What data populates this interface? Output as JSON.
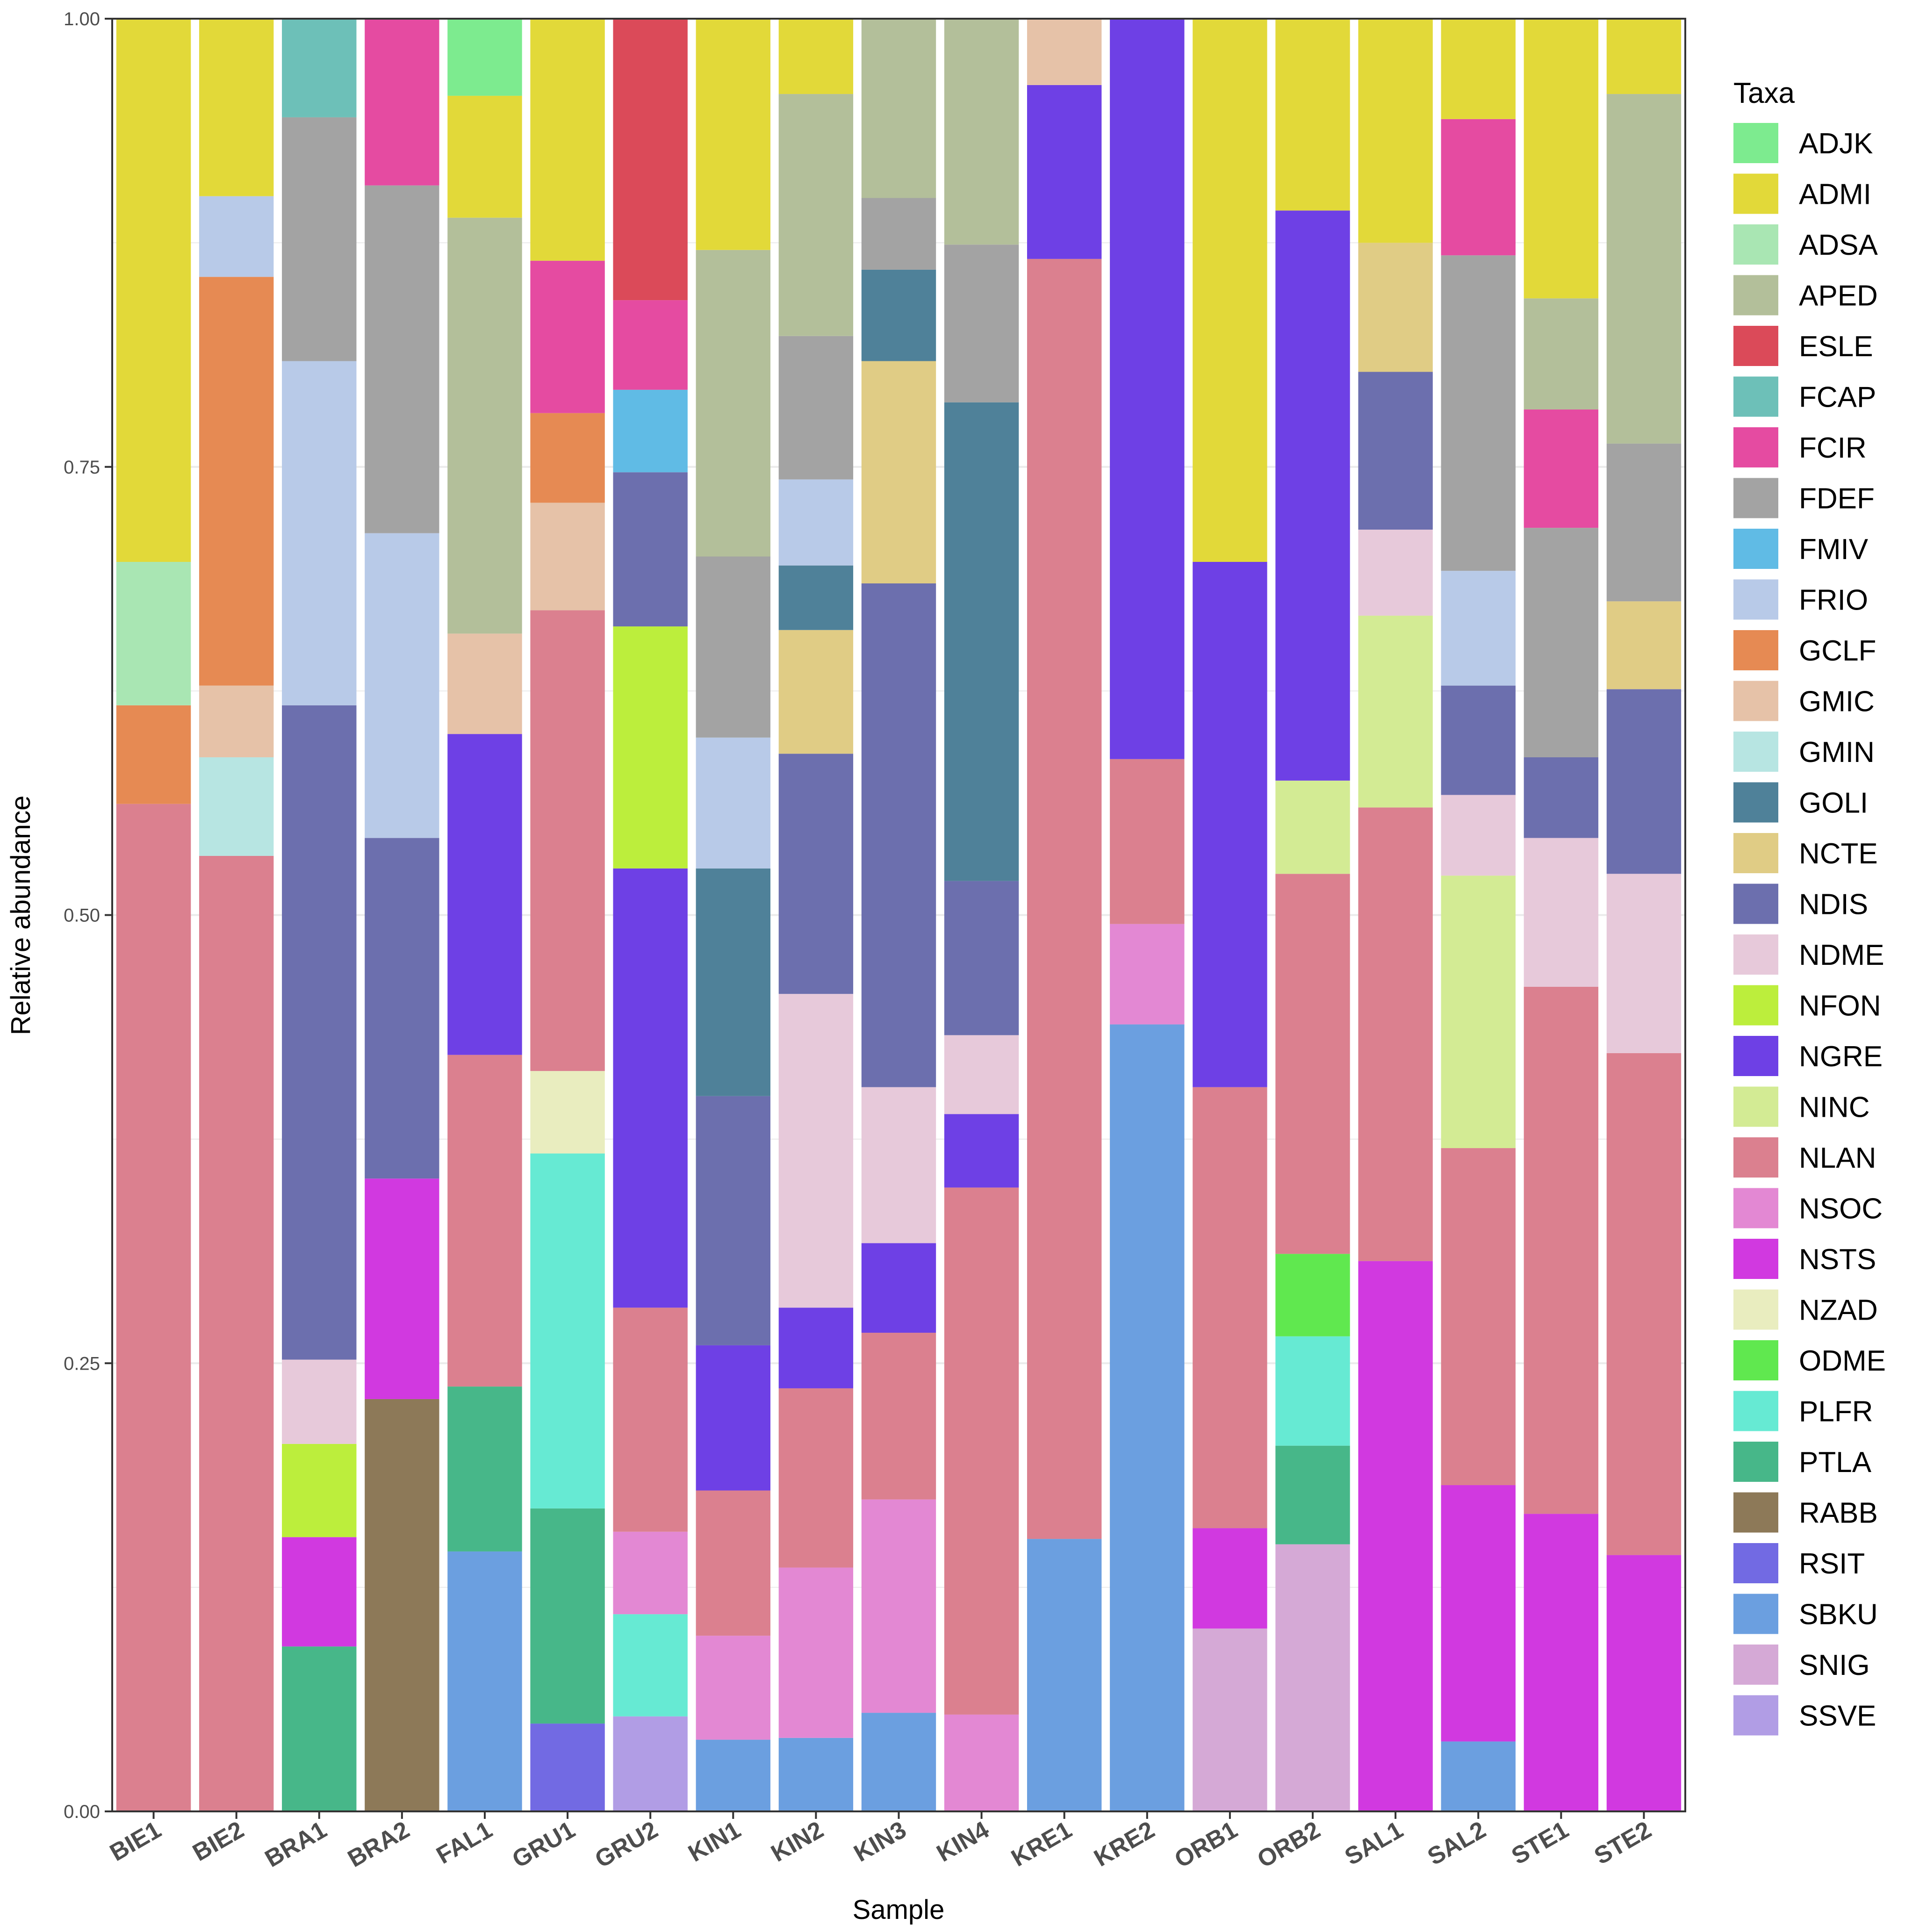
{
  "chart_data": {
    "type": "bar",
    "stacked": true,
    "xlabel": "Sample",
    "ylabel": "Relative abundance",
    "ylim": [
      0,
      1
    ],
    "y_ticks": [
      "0.00",
      "0.25",
      "0.50",
      "0.75",
      "1.00"
    ],
    "y_tick_values": [
      0,
      0.25,
      0.5,
      0.75,
      1.0
    ],
    "legend_title": "Taxa",
    "legend_position": "right",
    "grid": true,
    "taxa": [
      {
        "name": "ADJK",
        "color": "#7DEB8F"
      },
      {
        "name": "ADMI",
        "color": "#E2D939"
      },
      {
        "name": "ADSA",
        "color": "#A9E6B3"
      },
      {
        "name": "APED",
        "color": "#B3BF9A"
      },
      {
        "name": "ESLE",
        "color": "#DB4A59"
      },
      {
        "name": "FCAP",
        "color": "#6DC0B8"
      },
      {
        "name": "FCIR",
        "color": "#E54BA1"
      },
      {
        "name": "FDEF",
        "color": "#A3A3A3"
      },
      {
        "name": "FMIV",
        "color": "#60BBE5"
      },
      {
        "name": "FRIO",
        "color": "#B8CAE8"
      },
      {
        "name": "GCLF",
        "color": "#E68A53"
      },
      {
        "name": "GMIC",
        "color": "#E6C2A8"
      },
      {
        "name": "GMIN",
        "color": "#B7E5E2"
      },
      {
        "name": "GOLI",
        "color": "#4F8199"
      },
      {
        "name": "NCTE",
        "color": "#E0CC85"
      },
      {
        "name": "NDIS",
        "color": "#6C6FAE"
      },
      {
        "name": "NDME",
        "color": "#E7C9DA"
      },
      {
        "name": "NFON",
        "color": "#BCEE3C"
      },
      {
        "name": "NGRE",
        "color": "#6E40E5"
      },
      {
        "name": "NINC",
        "color": "#D3EB94"
      },
      {
        "name": "NLAN",
        "color": "#DB808F"
      },
      {
        "name": "NSOC",
        "color": "#E388D3"
      },
      {
        "name": "NSTS",
        "color": "#D139E0"
      },
      {
        "name": "NZAD",
        "color": "#E9EDBF"
      },
      {
        "name": "ODME",
        "color": "#60E84F"
      },
      {
        "name": "PLFR",
        "color": "#66EAD3"
      },
      {
        "name": "PTLA",
        "color": "#47B789"
      },
      {
        "name": "RABB",
        "color": "#8D7958"
      },
      {
        "name": "RSIT",
        "color": "#726AE3"
      },
      {
        "name": "SBKU",
        "color": "#6B9FE0"
      },
      {
        "name": "SNIG",
        "color": "#D5A9D6"
      },
      {
        "name": "SSVE",
        "color": "#B19DE5"
      }
    ],
    "categories": [
      "BIE1",
      "BIE2",
      "BRA1",
      "BRA2",
      "FAL1",
      "GRU1",
      "GRU2",
      "KIN1",
      "KIN2",
      "KIN3",
      "KIN4",
      "KRE1",
      "KRE2",
      "ORB1",
      "ORB2",
      "SAL1",
      "SAL2",
      "STE1",
      "STE2"
    ],
    "stacks": [
      [
        {
          "taxon": "NLAN",
          "value": 0.562
        },
        {
          "taxon": "GCLF",
          "value": 0.055
        },
        {
          "taxon": "ADSA",
          "value": 0.08
        },
        {
          "taxon": "ADMI",
          "value": 0.303
        }
      ],
      [
        {
          "taxon": "NLAN",
          "value": 0.533
        },
        {
          "taxon": "GMIN",
          "value": 0.055
        },
        {
          "taxon": "GMIC",
          "value": 0.04
        },
        {
          "taxon": "GCLF",
          "value": 0.228
        },
        {
          "taxon": "FRIO",
          "value": 0.045
        },
        {
          "taxon": "ADMI",
          "value": 0.099
        }
      ],
      [
        {
          "taxon": "PTLA",
          "value": 0.092
        },
        {
          "taxon": "NSTS",
          "value": 0.061
        },
        {
          "taxon": "NFON",
          "value": 0.052
        },
        {
          "taxon": "NDME",
          "value": 0.047
        },
        {
          "taxon": "NDIS",
          "value": 0.365
        },
        {
          "taxon": "FRIO",
          "value": 0.192
        },
        {
          "taxon": "FDEF",
          "value": 0.136
        },
        {
          "taxon": "FCAP",
          "value": 0.055
        }
      ],
      [
        {
          "taxon": "RABB",
          "value": 0.23
        },
        {
          "taxon": "NSTS",
          "value": 0.123
        },
        {
          "taxon": "NDIS",
          "value": 0.19
        },
        {
          "taxon": "FRIO",
          "value": 0.17
        },
        {
          "taxon": "FDEF",
          "value": 0.194
        },
        {
          "taxon": "FCIR",
          "value": 0.093
        }
      ],
      [
        {
          "taxon": "SBKU",
          "value": 0.145
        },
        {
          "taxon": "PTLA",
          "value": 0.092
        },
        {
          "taxon": "NLAN",
          "value": 0.185
        },
        {
          "taxon": "NGRE",
          "value": 0.179
        },
        {
          "taxon": "GMIC",
          "value": 0.056
        },
        {
          "taxon": "APED",
          "value": 0.232
        },
        {
          "taxon": "ADMI",
          "value": 0.068
        },
        {
          "taxon": "ADJK",
          "value": 0.043
        }
      ],
      [
        {
          "taxon": "RSIT",
          "value": 0.049
        },
        {
          "taxon": "PTLA",
          "value": 0.12
        },
        {
          "taxon": "PLFR",
          "value": 0.198
        },
        {
          "taxon": "NZAD",
          "value": 0.046
        },
        {
          "taxon": "NLAN",
          "value": 0.257
        },
        {
          "taxon": "GMIC",
          "value": 0.06
        },
        {
          "taxon": "GCLF",
          "value": 0.05
        },
        {
          "taxon": "FCIR",
          "value": 0.085
        },
        {
          "taxon": "ADMI",
          "value": 0.135
        }
      ],
      [
        {
          "taxon": "SSVE",
          "value": 0.053
        },
        {
          "taxon": "PLFR",
          "value": 0.057
        },
        {
          "taxon": "NSOC",
          "value": 0.046
        },
        {
          "taxon": "NLAN",
          "value": 0.125
        },
        {
          "taxon": "NGRE",
          "value": 0.245
        },
        {
          "taxon": "NFON",
          "value": 0.135
        },
        {
          "taxon": "NDIS",
          "value": 0.086
        },
        {
          "taxon": "FMIV",
          "value": 0.046
        },
        {
          "taxon": "FCIR",
          "value": 0.05
        },
        {
          "taxon": "ESLE",
          "value": 0.157
        }
      ],
      [
        {
          "taxon": "SBKU",
          "value": 0.04
        },
        {
          "taxon": "NSOC",
          "value": 0.058
        },
        {
          "taxon": "NLAN",
          "value": 0.081
        },
        {
          "taxon": "NGRE",
          "value": 0.081
        },
        {
          "taxon": "NDIS",
          "value": 0.139
        },
        {
          "taxon": "GOLI",
          "value": 0.127
        },
        {
          "taxon": "FRIO",
          "value": 0.073
        },
        {
          "taxon": "FDEF",
          "value": 0.101
        },
        {
          "taxon": "APED",
          "value": 0.171
        },
        {
          "taxon": "ADMI",
          "value": 0.129
        }
      ],
      [
        {
          "taxon": "SBKU",
          "value": 0.041
        },
        {
          "taxon": "NSOC",
          "value": 0.095
        },
        {
          "taxon": "NLAN",
          "value": 0.1
        },
        {
          "taxon": "NGRE",
          "value": 0.045
        },
        {
          "taxon": "NDME",
          "value": 0.175
        },
        {
          "taxon": "NDIS",
          "value": 0.134
        },
        {
          "taxon": "NCTE",
          "value": 0.069
        },
        {
          "taxon": "GOLI",
          "value": 0.036
        },
        {
          "taxon": "FRIO",
          "value": 0.048
        },
        {
          "taxon": "FDEF",
          "value": 0.08
        },
        {
          "taxon": "APED",
          "value": 0.135
        },
        {
          "taxon": "ADMI",
          "value": 0.042
        }
      ],
      [
        {
          "taxon": "SBKU",
          "value": 0.055
        },
        {
          "taxon": "NSOC",
          "value": 0.119
        },
        {
          "taxon": "NLAN",
          "value": 0.093
        },
        {
          "taxon": "NGRE",
          "value": 0.05
        },
        {
          "taxon": "NDME",
          "value": 0.087
        },
        {
          "taxon": "NDIS",
          "value": 0.281
        },
        {
          "taxon": "NCTE",
          "value": 0.124
        },
        {
          "taxon": "GOLI",
          "value": 0.051
        },
        {
          "taxon": "FDEF",
          "value": 0.04
        },
        {
          "taxon": "APED",
          "value": 0.1
        }
      ],
      [
        {
          "taxon": "NSOC",
          "value": 0.054
        },
        {
          "taxon": "NLAN",
          "value": 0.294
        },
        {
          "taxon": "NGRE",
          "value": 0.041
        },
        {
          "taxon": "NDME",
          "value": 0.044
        },
        {
          "taxon": "NDIS",
          "value": 0.086
        },
        {
          "taxon": "GOLI",
          "value": 0.267
        },
        {
          "taxon": "FDEF",
          "value": 0.088
        },
        {
          "taxon": "APED",
          "value": 0.126
        }
      ],
      [
        {
          "taxon": "SBKU",
          "value": 0.152
        },
        {
          "taxon": "NLAN",
          "value": 0.714
        },
        {
          "taxon": "NGRE",
          "value": 0.097
        },
        {
          "taxon": "GMIC",
          "value": 0.037
        }
      ],
      [
        {
          "taxon": "SBKU",
          "value": 0.439
        },
        {
          "taxon": "NSOC",
          "value": 0.056
        },
        {
          "taxon": "NLAN",
          "value": 0.092
        },
        {
          "taxon": "NGRE",
          "value": 0.413
        }
      ],
      [
        {
          "taxon": "SNIG",
          "value": 0.102
        },
        {
          "taxon": "NSTS",
          "value": 0.056
        },
        {
          "taxon": "NLAN",
          "value": 0.246
        },
        {
          "taxon": "NGRE",
          "value": 0.293
        },
        {
          "taxon": "ADMI",
          "value": 0.303
        }
      ],
      [
        {
          "taxon": "SNIG",
          "value": 0.149
        },
        {
          "taxon": "PTLA",
          "value": 0.055
        },
        {
          "taxon": "PLFR",
          "value": 0.061
        },
        {
          "taxon": "ODME",
          "value": 0.046
        },
        {
          "taxon": "NLAN",
          "value": 0.212
        },
        {
          "taxon": "NINC",
          "value": 0.052
        },
        {
          "taxon": "NGRE",
          "value": 0.318
        },
        {
          "taxon": "ADMI",
          "value": 0.107
        }
      ],
      [
        {
          "taxon": "NSTS",
          "value": 0.307
        },
        {
          "taxon": "NLAN",
          "value": 0.253
        },
        {
          "taxon": "NINC",
          "value": 0.107
        },
        {
          "taxon": "NDME",
          "value": 0.048
        },
        {
          "taxon": "NDIS",
          "value": 0.088
        },
        {
          "taxon": "NCTE",
          "value": 0.072
        },
        {
          "taxon": "ADMI",
          "value": 0.125
        }
      ],
      [
        {
          "taxon": "SBKU",
          "value": 0.039
        },
        {
          "taxon": "NSTS",
          "value": 0.143
        },
        {
          "taxon": "NLAN",
          "value": 0.188
        },
        {
          "taxon": "NINC",
          "value": 0.152
        },
        {
          "taxon": "NDME",
          "value": 0.045
        },
        {
          "taxon": "NDIS",
          "value": 0.061
        },
        {
          "taxon": "FRIO",
          "value": 0.064
        },
        {
          "taxon": "FDEF",
          "value": 0.176
        },
        {
          "taxon": "FCIR",
          "value": 0.076
        },
        {
          "taxon": "ADMI",
          "value": 0.056
        }
      ],
      [
        {
          "taxon": "NSTS",
          "value": 0.166
        },
        {
          "taxon": "NLAN",
          "value": 0.294
        },
        {
          "taxon": "NDME",
          "value": 0.083
        },
        {
          "taxon": "NDIS",
          "value": 0.045
        },
        {
          "taxon": "FDEF",
          "value": 0.128
        },
        {
          "taxon": "FCIR",
          "value": 0.066
        },
        {
          "taxon": "APED",
          "value": 0.062
        },
        {
          "taxon": "ADMI",
          "value": 0.156
        }
      ],
      [
        {
          "taxon": "NSTS",
          "value": 0.143
        },
        {
          "taxon": "NLAN",
          "value": 0.28
        },
        {
          "taxon": "NDME",
          "value": 0.1
        },
        {
          "taxon": "NDIS",
          "value": 0.103
        },
        {
          "taxon": "NCTE",
          "value": 0.049
        },
        {
          "taxon": "FDEF",
          "value": 0.088
        },
        {
          "taxon": "APED",
          "value": 0.195
        },
        {
          "taxon": "ADMI",
          "value": 0.042
        }
      ]
    ]
  }
}
